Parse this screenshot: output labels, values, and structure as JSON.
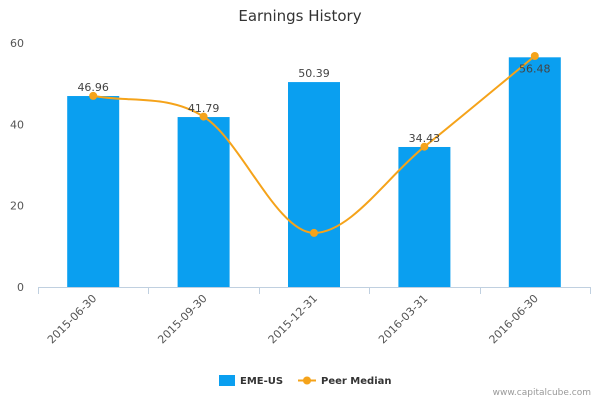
{
  "chart_data": {
    "type": "bar",
    "title": "Earnings History",
    "categories": [
      "2015-06-30",
      "2015-09-30",
      "2015-12-31",
      "2016-03-31",
      "2016-06-30"
    ],
    "series": [
      {
        "name": "EME-US",
        "type": "bar",
        "color": "#0a9ff0",
        "values": [
          46.96,
          41.79,
          50.39,
          34.43,
          56.48
        ],
        "labels": [
          "46.96",
          "41.79",
          "50.39",
          "34.43",
          "56.48"
        ]
      },
      {
        "name": "Peer Median",
        "type": "line",
        "smooth": true,
        "color": "#f5a31a",
        "values": [
          47.0,
          41.9,
          13.3,
          34.5,
          56.8
        ]
      }
    ],
    "ylim": [
      0,
      60
    ],
    "yticks": [
      "0",
      "20",
      "40",
      "60"
    ],
    "grid": false,
    "legend_position": "bottom-center"
  },
  "credit": "www.capitalcube.com"
}
